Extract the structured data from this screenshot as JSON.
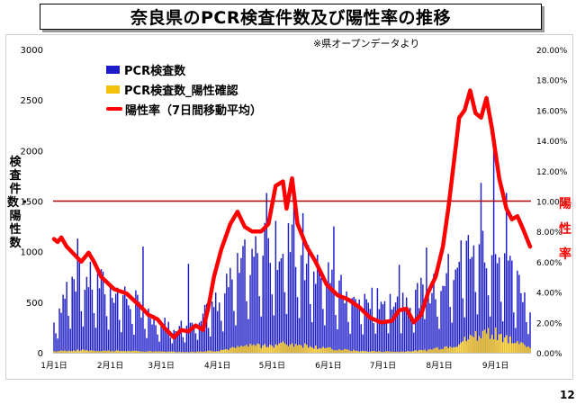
{
  "page": {
    "title": "奈良県のPCR検査件数及び陽性率の推移",
    "source_note": "※県オープンデータより",
    "page_number": "12"
  },
  "colors": {
    "tests": "#1c1cc8",
    "positives": "#f4c20d",
    "rate": "#ff0000",
    "threshold": "#b00000"
  },
  "chart_data": {
    "type": "bar",
    "x_axis": {
      "type": "date",
      "range": [
        "2021-01-01",
        "2021-09-20"
      ],
      "ticks": [
        "2021-01-01",
        "2021-02-01",
        "2021-03-01",
        "2021-04-01",
        "2021-05-01",
        "2021-06-01",
        "2021-07-01",
        "2021-08-01",
        "2021-09-01"
      ],
      "tick_labels": [
        "1月1日",
        "2月1日",
        "3月1日",
        "4月1日",
        "5月1日",
        "6月1日",
        "7月1日",
        "8月1日",
        "9月1日"
      ]
    },
    "y_axis_left": {
      "label": "検査件数・陽性数",
      "range": [
        0,
        3000
      ],
      "ticks": [
        0,
        500,
        1000,
        1500,
        2000,
        2500,
        3000
      ]
    },
    "y_axis_right": {
      "label": "陽性率",
      "range": [
        0,
        20
      ],
      "ticks": [
        0,
        2,
        4,
        6,
        8,
        10,
        12,
        14,
        16,
        18,
        20
      ],
      "tick_labels": [
        "0.00%",
        "2.00%",
        "4.00%",
        "6.00%",
        "8.00%",
        "10.00%",
        "12.00%",
        "14.00%",
        "16.00%",
        "18.00%",
        "20.00%"
      ]
    },
    "threshold": {
      "axis": "right",
      "value": 10
    },
    "legend": {
      "position": "top-left",
      "entries": [
        "PCR検査数",
        "PCR検査数_陽性確認",
        "陽性率（7日間移動平均）"
      ]
    },
    "series": [
      {
        "name": "PCR検査数",
        "type": "bar",
        "axis": "left",
        "anchors": [
          [
            "2021-01-01",
            300
          ],
          [
            "2021-01-08",
            650
          ],
          [
            "2021-01-15",
            750
          ],
          [
            "2021-01-22",
            720
          ],
          [
            "2021-01-31",
            650
          ],
          [
            "2021-02-15",
            500
          ],
          [
            "2021-03-01",
            300
          ],
          [
            "2021-03-10",
            250
          ],
          [
            "2021-03-20",
            350
          ],
          [
            "2021-03-31",
            500
          ],
          [
            "2021-04-10",
            750
          ],
          [
            "2021-04-20",
            1000
          ],
          [
            "2021-05-01",
            1050
          ],
          [
            "2021-05-10",
            1100
          ],
          [
            "2021-05-20",
            900
          ],
          [
            "2021-06-01",
            750
          ],
          [
            "2021-06-15",
            500
          ],
          [
            "2021-07-01",
            550
          ],
          [
            "2021-07-15",
            550
          ],
          [
            "2021-07-31",
            650
          ],
          [
            "2021-08-10",
            900
          ],
          [
            "2021-08-20",
            1100
          ],
          [
            "2021-09-01",
            1000
          ],
          [
            "2021-09-10",
            750
          ],
          [
            "2021-09-20",
            500
          ]
        ],
        "peaks": [
          [
            "2021-01-14",
            1130
          ],
          [
            "2021-02-19",
            1050
          ],
          [
            "2021-03-16",
            880
          ],
          [
            "2021-04-28",
            1580
          ],
          [
            "2021-05-13",
            1610
          ],
          [
            "2021-05-18",
            1380
          ],
          [
            "2021-06-04",
            1250
          ],
          [
            "2021-07-10",
            870
          ],
          [
            "2021-07-25",
            1040
          ],
          [
            "2021-08-24",
            1680
          ],
          [
            "2021-08-31",
            2150
          ],
          [
            "2021-09-07",
            1580
          ]
        ]
      },
      {
        "name": "PCR検査数_陽性確認",
        "type": "bar",
        "axis": "left",
        "anchors": [
          [
            "2021-01-01",
            15
          ],
          [
            "2021-01-15",
            25
          ],
          [
            "2021-02-15",
            15
          ],
          [
            "2021-03-15",
            8
          ],
          [
            "2021-04-01",
            20
          ],
          [
            "2021-04-15",
            60
          ],
          [
            "2021-05-01",
            80
          ],
          [
            "2021-05-15",
            90
          ],
          [
            "2021-06-01",
            40
          ],
          [
            "2021-06-20",
            15
          ],
          [
            "2021-07-10",
            10
          ],
          [
            "2021-07-25",
            25
          ],
          [
            "2021-08-10",
            80
          ],
          [
            "2021-08-20",
            160
          ],
          [
            "2021-08-31",
            220
          ],
          [
            "2021-09-10",
            120
          ],
          [
            "2021-09-20",
            50
          ]
        ]
      },
      {
        "name": "陽性率（7日間移動平均）",
        "type": "line",
        "axis": "right",
        "points": [
          [
            "2021-01-01",
            7.5
          ],
          [
            "2021-01-03",
            7.3
          ],
          [
            "2021-01-05",
            7.6
          ],
          [
            "2021-01-08",
            7.0
          ],
          [
            "2021-01-12",
            6.5
          ],
          [
            "2021-01-16",
            6.0
          ],
          [
            "2021-01-20",
            6.6
          ],
          [
            "2021-01-23",
            6.0
          ],
          [
            "2021-01-27",
            5.0
          ],
          [
            "2021-02-03",
            4.2
          ],
          [
            "2021-02-10",
            3.9
          ],
          [
            "2021-02-18",
            3.0
          ],
          [
            "2021-02-22",
            2.5
          ],
          [
            "2021-02-27",
            2.2
          ],
          [
            "2021-03-03",
            1.6
          ],
          [
            "2021-03-08",
            1.0
          ],
          [
            "2021-03-12",
            1.5
          ],
          [
            "2021-03-16",
            1.4
          ],
          [
            "2021-03-20",
            1.8
          ],
          [
            "2021-03-24",
            1.5
          ],
          [
            "2021-03-27",
            3.0
          ],
          [
            "2021-03-30",
            5.0
          ],
          [
            "2021-04-03",
            6.8
          ],
          [
            "2021-04-08",
            8.5
          ],
          [
            "2021-04-12",
            9.3
          ],
          [
            "2021-04-16",
            8.3
          ],
          [
            "2021-04-20",
            8.0
          ],
          [
            "2021-04-25",
            8.0
          ],
          [
            "2021-04-29",
            8.5
          ],
          [
            "2021-05-03",
            11.0
          ],
          [
            "2021-05-07",
            11.3
          ],
          [
            "2021-05-09",
            9.5
          ],
          [
            "2021-05-12",
            11.5
          ],
          [
            "2021-05-15",
            8.5
          ],
          [
            "2021-05-20",
            7.0
          ],
          [
            "2021-05-25",
            6.0
          ],
          [
            "2021-05-31",
            4.5
          ],
          [
            "2021-06-06",
            3.8
          ],
          [
            "2021-06-12",
            3.5
          ],
          [
            "2021-06-18",
            3.0
          ],
          [
            "2021-06-24",
            2.3
          ],
          [
            "2021-06-30",
            2.0
          ],
          [
            "2021-07-06",
            2.1
          ],
          [
            "2021-07-10",
            2.8
          ],
          [
            "2021-07-14",
            2.9
          ],
          [
            "2021-07-18",
            2.0
          ],
          [
            "2021-07-22",
            2.5
          ],
          [
            "2021-07-26",
            4.0
          ],
          [
            "2021-07-30",
            5.0
          ],
          [
            "2021-08-03",
            7.0
          ],
          [
            "2021-08-06",
            9.5
          ],
          [
            "2021-08-09",
            12.5
          ],
          [
            "2021-08-12",
            15.5
          ],
          [
            "2021-08-15",
            16.0
          ],
          [
            "2021-08-18",
            17.3
          ],
          [
            "2021-08-21",
            15.8
          ],
          [
            "2021-08-24",
            15.5
          ],
          [
            "2021-08-27",
            16.8
          ],
          [
            "2021-08-30",
            14.8
          ],
          [
            "2021-09-03",
            11.5
          ],
          [
            "2021-09-07",
            9.5
          ],
          [
            "2021-09-10",
            8.8
          ],
          [
            "2021-09-13",
            9.0
          ],
          [
            "2021-09-16",
            8.2
          ],
          [
            "2021-09-20",
            7.0
          ]
        ]
      }
    ]
  }
}
